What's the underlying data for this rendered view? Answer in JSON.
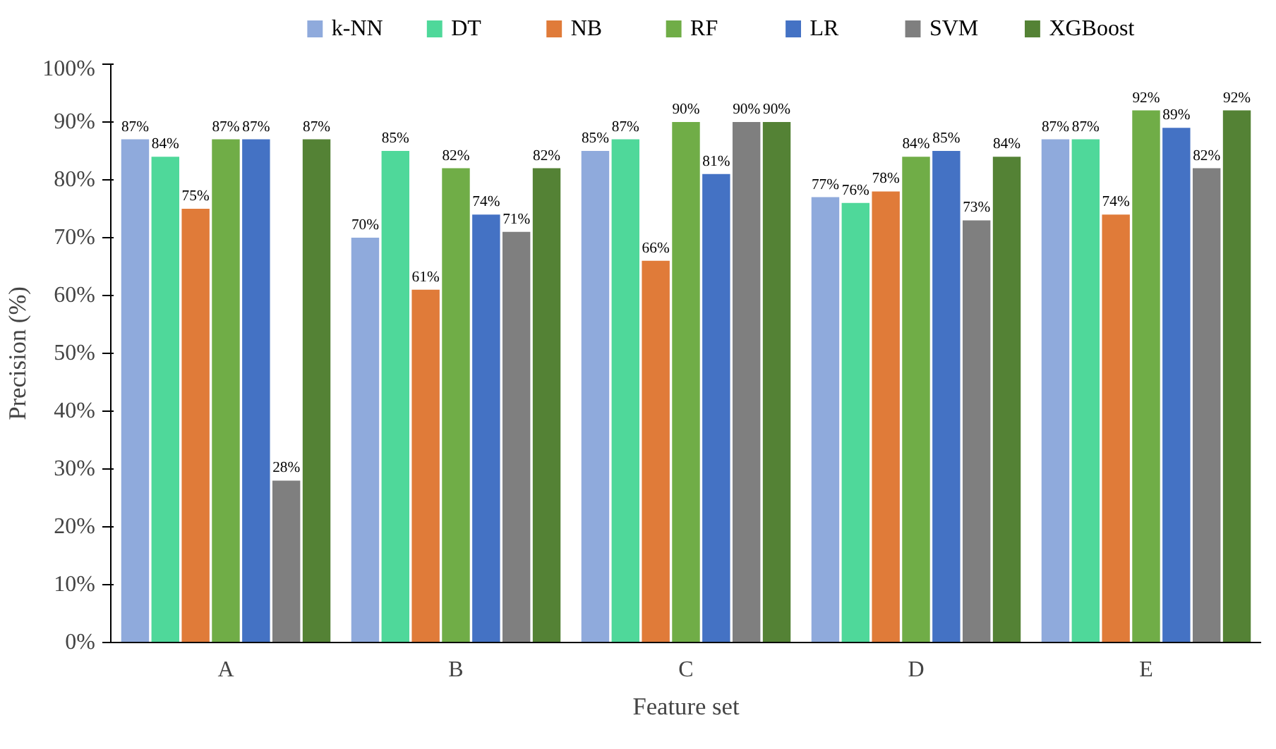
{
  "chart_data": {
    "type": "bar",
    "xlabel": "Feature set",
    "ylabel": "Precision (%)",
    "categories": [
      "A",
      "B",
      "C",
      "D",
      "E"
    ],
    "series": [
      {
        "name": "k-NN",
        "color": "#8faadc",
        "values": [
          87,
          70,
          85,
          77,
          87
        ],
        "value_labels": [
          "87%",
          "70%",
          "85%",
          "77%",
          "87%"
        ]
      },
      {
        "name": "DT",
        "color": "#4fd89a",
        "values": [
          84,
          85,
          87,
          76,
          87
        ],
        "value_labels": [
          "84%",
          "85%",
          "87%",
          "76%",
          "87%"
        ]
      },
      {
        "name": "NB",
        "color": "#e07b39",
        "values": [
          75,
          61,
          66,
          78,
          74
        ],
        "value_labels": [
          "75%",
          "61%",
          "66%",
          "78%",
          "74%"
        ]
      },
      {
        "name": "RF",
        "color": "#70ad47",
        "values": [
          87,
          82,
          90,
          84,
          92
        ],
        "value_labels": [
          "87%",
          "82%",
          "90%",
          "84%",
          "92%"
        ]
      },
      {
        "name": "LR",
        "color": "#4472c4",
        "values": [
          87,
          74,
          81,
          85,
          89
        ],
        "value_labels": [
          "87%",
          "74%",
          "81%",
          "85%",
          "89%"
        ]
      },
      {
        "name": "SVM",
        "color": "#7f7f7f",
        "values": [
          28,
          71,
          90,
          73,
          82
        ],
        "value_labels": [
          "28%",
          "71%",
          "90%",
          "73%",
          "82%"
        ]
      },
      {
        "name": "XGBoost",
        "color": "#548235",
        "values": [
          87,
          82,
          90,
          84,
          92
        ],
        "value_labels": [
          "87%",
          "82%",
          "90%",
          "84%",
          "92%"
        ]
      }
    ],
    "ylim": [
      0,
      100
    ],
    "yticks": [
      {
        "value": 0,
        "label": "0%"
      },
      {
        "value": 10,
        "label": "10%"
      },
      {
        "value": 20,
        "label": "20%"
      },
      {
        "value": 30,
        "label": "30%"
      },
      {
        "value": 40,
        "label": "40%"
      },
      {
        "value": 50,
        "label": "50%"
      },
      {
        "value": 60,
        "label": "60%"
      },
      {
        "value": 70,
        "label": "70%"
      },
      {
        "value": 80,
        "label": "80%"
      },
      {
        "value": 90,
        "label": "90%"
      },
      {
        "value": 100,
        "label": "100%"
      }
    ],
    "legend": "top",
    "grid": false
  }
}
